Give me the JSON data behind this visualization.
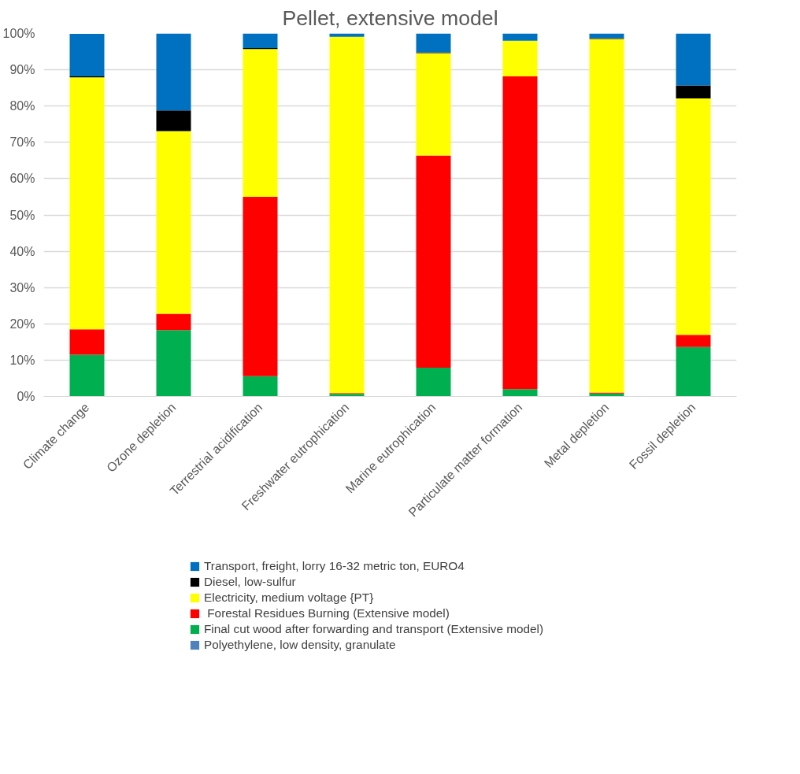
{
  "chart_data": {
    "type": "bar",
    "title": "Pellet, extensive model",
    "stacked": true,
    "categories": [
      "Climate change",
      "Ozone depletion",
      "Terrestrial acidification",
      "Freshwater eutrophication",
      "Marine eutrophication",
      "Particulate matter formation",
      "Metal depletion",
      "Fossil depletion"
    ],
    "series": [
      {
        "name": "Polyethylene, low density, granulate",
        "color": "#4f81bd",
        "values": [
          0,
          0,
          0,
          0,
          0,
          0,
          0,
          0
        ]
      },
      {
        "name": "Final cut wood after forwarding and transport (Extensive model)",
        "color": "#00b050",
        "values": [
          11.5,
          18.3,
          5.6,
          0.7,
          7.9,
          2.0,
          0.8,
          13.6
        ]
      },
      {
        "name": " Forestal Residues Burning (Extensive model)",
        "color": "#ff0000",
        "values": [
          7.0,
          4.5,
          49.4,
          0.2,
          58.5,
          86.2,
          0.3,
          3.4
        ]
      },
      {
        "name": "Electricity, medium voltage {PT}",
        "color": "#ffff00",
        "values": [
          69.4,
          50.3,
          40.7,
          98.2,
          28.2,
          9.8,
          97.4,
          65.1
        ]
      },
      {
        "name": "Diesel, low-sulfur",
        "color": "#000000",
        "values": [
          0.3,
          5.7,
          0.3,
          0,
          0.2,
          0,
          0.2,
          3.6
        ]
      },
      {
        "name": "Transport, freight, lorry 16-32 metric ton, EURO4",
        "color": "#0070c0",
        "values": [
          11.7,
          21.2,
          4.0,
          0.9,
          5.2,
          2.0,
          1.3,
          14.3
        ]
      }
    ],
    "ylim": [
      0,
      100
    ],
    "yticks": [
      {
        "value": 0,
        "label": "0%"
      },
      {
        "value": 10,
        "label": "10%"
      },
      {
        "value": 20,
        "label": "20%"
      },
      {
        "value": 30,
        "label": "30%"
      },
      {
        "value": 40,
        "label": "40%"
      },
      {
        "value": 50,
        "label": "50%"
      },
      {
        "value": 60,
        "label": "60%"
      },
      {
        "value": 70,
        "label": "70%"
      },
      {
        "value": 80,
        "label": "80%"
      },
      {
        "value": 90,
        "label": "90%"
      },
      {
        "value": 100,
        "label": "100%"
      }
    ],
    "grid": "y",
    "legend": "bottom"
  }
}
